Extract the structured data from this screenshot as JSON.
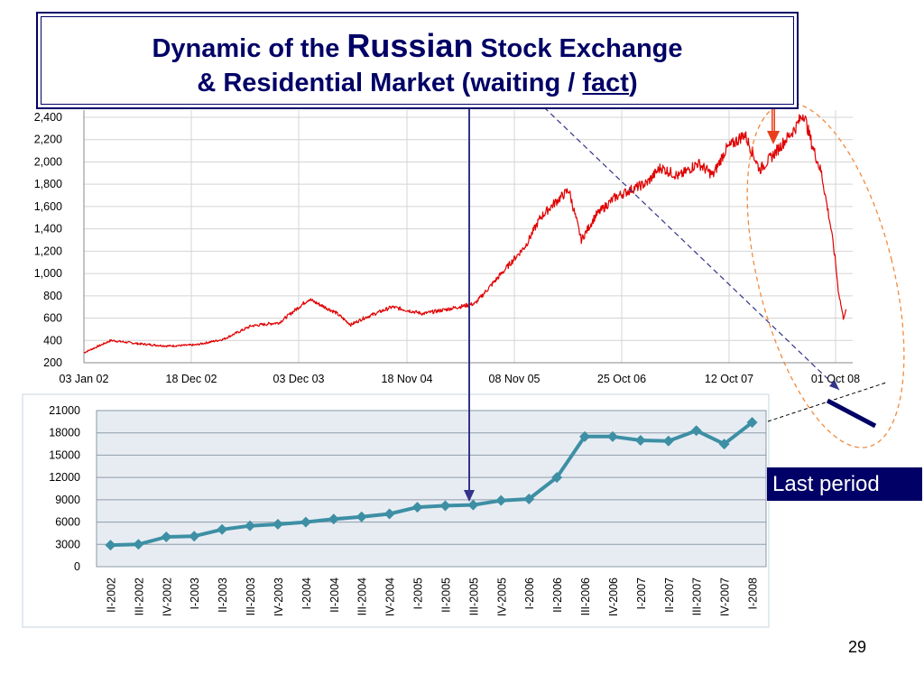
{
  "title": {
    "line1_a": "Dynamic of the ",
    "line1_b": "Russian",
    "line1_c": " Stock Exchange",
    "line2_a": "&  Residential Market (waiting / ",
    "line2_b": "fact",
    "line2_c": ")"
  },
  "last_period_label": "Last period",
  "page_number": "29",
  "colors": {
    "title": "#000066",
    "stock_line": "#e00000",
    "housing_line": "#3d8fa4",
    "arrow_down": "#e8401c",
    "ellipse": "#f08a3c",
    "guide": "#33338a"
  },
  "chart_data": [
    {
      "type": "line",
      "title": "",
      "xlabel": "",
      "ylabel": "",
      "ylim": [
        200,
        2400
      ],
      "yticks": [
        "2,400",
        "2,200",
        "2,000",
        "1,800",
        "1,600",
        "1,400",
        "1,200",
        "1,000",
        "800",
        "600",
        "400",
        "200"
      ],
      "x_tick_labels": [
        "03 Jan 02",
        "18 Dec 02",
        "03 Dec 03",
        "18 Nov 04",
        "08 Nov 05",
        "25 Oct 06",
        "12 Oct 07",
        "01 Oct 08"
      ],
      "grid": true,
      "x_dates": [
        "2002-01-03",
        "2002-04-01",
        "2002-07-01",
        "2002-10-01",
        "2003-01-02",
        "2003-04-01",
        "2003-07-01",
        "2003-10-01",
        "2004-01-05",
        "2004-04-01",
        "2004-05-20",
        "2004-07-01",
        "2004-10-01",
        "2005-01-10",
        "2005-04-01",
        "2005-07-01",
        "2005-10-03",
        "2005-12-15",
        "2006-02-01",
        "2006-03-15",
        "2006-05-05",
        "2006-06-15",
        "2006-08-01",
        "2006-10-02",
        "2006-12-01",
        "2007-01-15",
        "2007-03-01",
        "2007-05-01",
        "2007-07-02",
        "2007-08-20",
        "2007-10-01",
        "2007-12-03",
        "2008-01-22",
        "2008-03-03",
        "2008-05-19",
        "2008-06-16",
        "2008-07-15",
        "2008-08-15",
        "2008-09-16",
        "2008-10-01",
        "2008-10-10",
        "2008-10-27",
        "2008-11-05"
      ],
      "values": [
        290,
        400,
        370,
        350,
        360,
        410,
        530,
        560,
        770,
        650,
        540,
        600,
        700,
        640,
        680,
        730,
        1020,
        1250,
        1500,
        1620,
        1750,
        1300,
        1520,
        1680,
        1760,
        1810,
        1950,
        1870,
        1990,
        1880,
        2110,
        2250,
        1930,
        2050,
        2300,
        2440,
        2150,
        1900,
        1400,
        1100,
        850,
        600,
        680
      ],
      "series": [
        {
          "name": "",
          "color": "#e00000"
        }
      ]
    },
    {
      "type": "line",
      "title": "",
      "xlabel": "",
      "ylabel": "",
      "ylim": [
        0,
        21000
      ],
      "yticks": [
        "21000",
        "18000",
        "15000",
        "12000",
        "9000",
        "6000",
        "3000",
        "0"
      ],
      "categories": [
        "II-2002",
        "III-2002",
        "IV-2002",
        "I-2003",
        "II-2003",
        "III-2003",
        "IV-2003",
        "I-2004",
        "II-2004",
        "III-2004",
        "IV-2004",
        "I-2005",
        "II-2005",
        "III-2005",
        "IV-2005",
        "I-2006",
        "II-2006",
        "III-2006",
        "IV-2006",
        "I-2007",
        "II-2007",
        "III-2007",
        "IV-2007",
        "I-2008"
      ],
      "values": [
        2900,
        3000,
        4000,
        4100,
        5000,
        5500,
        5700,
        6000,
        6400,
        6700,
        7100,
        8000,
        8200,
        8300,
        8900,
        9100,
        12000,
        17500,
        17500,
        17000,
        16900,
        18300,
        16500,
        19400
      ],
      "grid": true,
      "series": [
        {
          "name": "",
          "color": "#3d8fa4"
        }
      ]
    }
  ]
}
